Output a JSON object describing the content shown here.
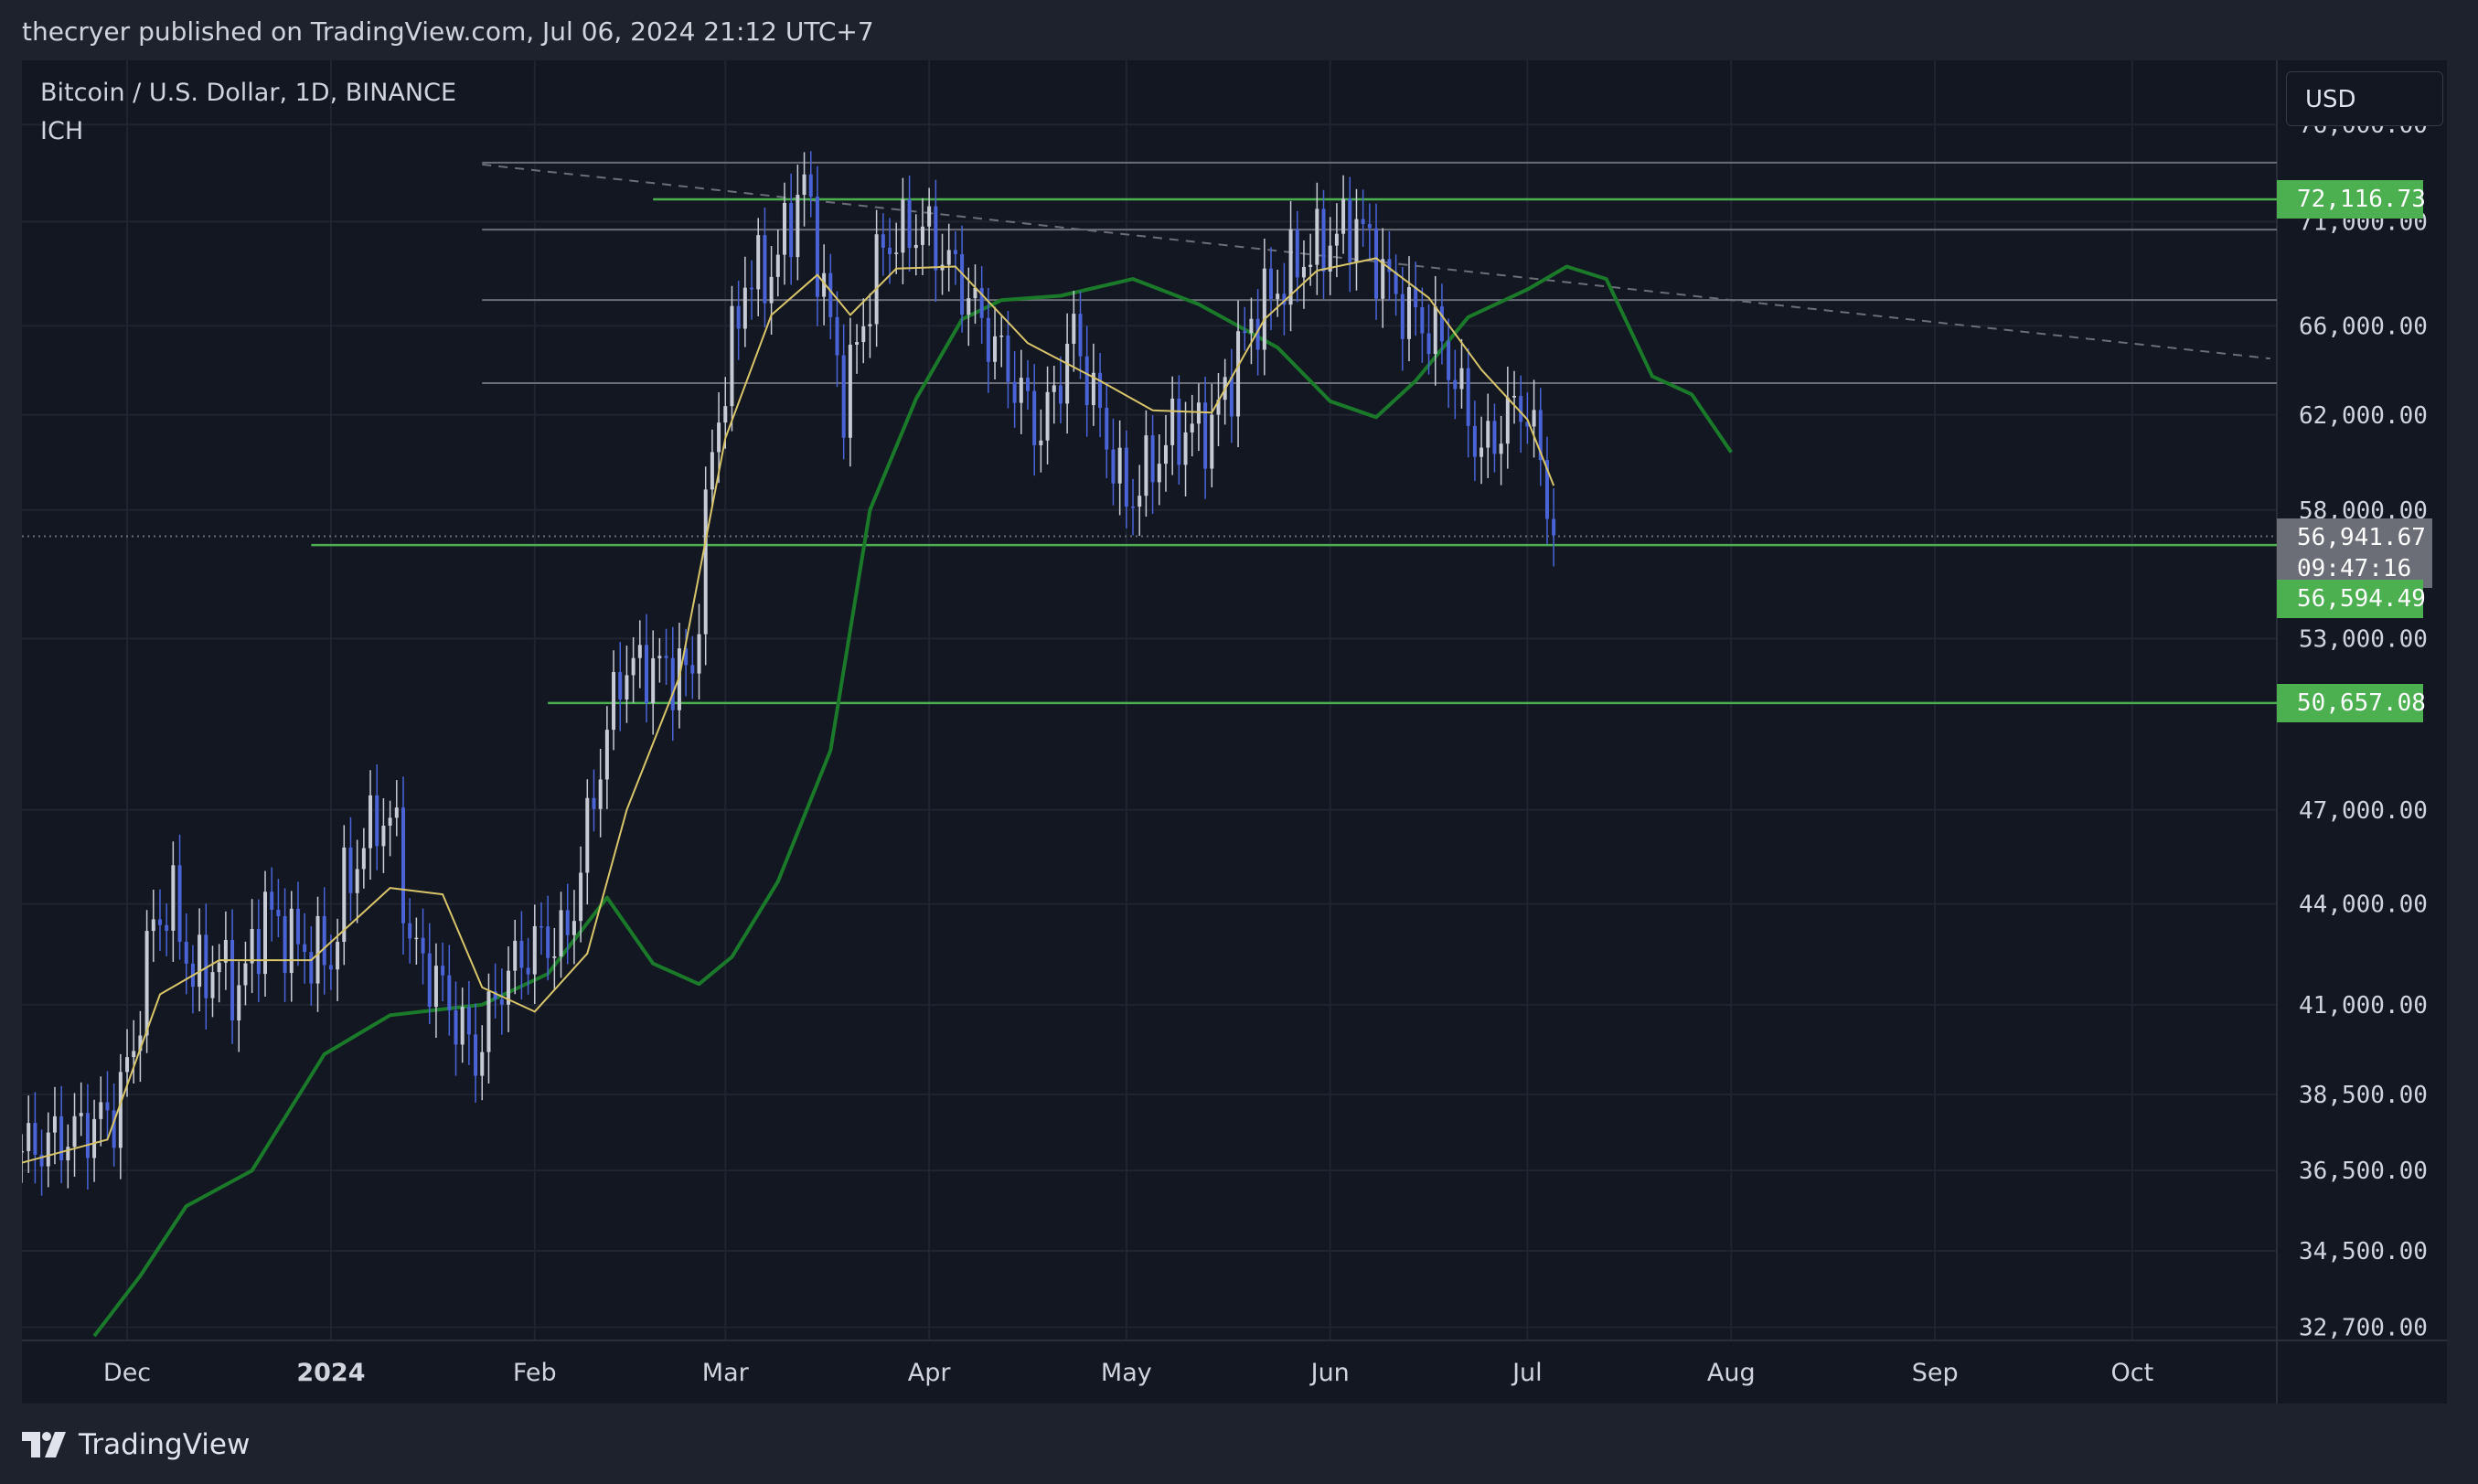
{
  "header": {
    "publish_text": "thecryer published on TradingView.com, Jul 06, 2024 21:12 UTC+7"
  },
  "symbol": {
    "title": "Bitcoin / U.S. Dollar, 1D, BINANCE",
    "indicator": "ICH"
  },
  "currency_button": "USD",
  "footer": {
    "brand": "TradingView",
    "logo_icon": "tradingview-logo-icon"
  },
  "colors": {
    "background": "#131722",
    "grid": "#1f2430",
    "candle": "#4a64d8",
    "conversion_line": "#d8c56a",
    "cloud_line": "#1a7a2a",
    "level_line": "#4caf50",
    "level_tag": "#4caf50",
    "current_tag": "#6b6e76"
  },
  "price_tags": {
    "level_top": "72,116.73",
    "current_price": "56,941.67",
    "countdown": "09:47:16",
    "level_mid": "56,594.49",
    "level_low": "50,657.08"
  },
  "chart_data": {
    "type": "candlestick",
    "title": "Bitcoin / U.S. Dollar, 1D, BINANCE",
    "price_scale": "log",
    "y_tick_labels": [
      "76,000.00",
      "71,000.00",
      "66,000.00",
      "62,000.00",
      "58,000.00",
      "53,000.00",
      "47,000.00",
      "44,000.00",
      "41,000.00",
      "38,500.00",
      "36,500.00",
      "34,500.00",
      "32,700.00"
    ],
    "y_ticks": [
      76000,
      71000,
      66000,
      62000,
      58000,
      53000,
      47000,
      44000,
      41000,
      38500,
      36500,
      34500,
      32700
    ],
    "x_tick_labels": [
      "Dec",
      "2024",
      "Feb",
      "Mar",
      "Apr",
      "May",
      "Jun",
      "Jul",
      "Aug",
      "Sep",
      "Oct"
    ],
    "x_ticks": [
      "2023-12-01",
      "2024-01-01",
      "2024-02-01",
      "2024-03-01",
      "2024-04-01",
      "2024-05-01",
      "2024-06-01",
      "2024-07-01",
      "2024-08-01",
      "2024-09-01",
      "2024-10-01"
    ],
    "x_range": [
      "2023-11-15",
      "2024-10-23"
    ],
    "y_range": [
      32400,
      79500
    ],
    "horizontal_levels": [
      72116.73,
      56594.49,
      50657.08
    ],
    "gray_levels": [
      74000,
      70600,
      67200,
      63400
    ],
    "current_price": 56941.67,
    "trendline": [
      {
        "date": "2024-01-24",
        "price": 73900
      },
      {
        "date": "2024-10-22",
        "price": 64500
      }
    ],
    "price_series": [
      {
        "date": "2023-11-15",
        "price": 37000
      },
      {
        "date": "2023-11-22",
        "price": 37400
      },
      {
        "date": "2023-11-29",
        "price": 38000
      },
      {
        "date": "2023-12-02",
        "price": 39800
      },
      {
        "date": "2023-12-05",
        "price": 43500
      },
      {
        "date": "2023-12-08",
        "price": 44000
      },
      {
        "date": "2023-12-11",
        "price": 41800
      },
      {
        "date": "2023-12-15",
        "price": 42200
      },
      {
        "date": "2023-12-18",
        "price": 41400
      },
      {
        "date": "2023-12-22",
        "price": 43800
      },
      {
        "date": "2023-12-27",
        "price": 42700
      },
      {
        "date": "2024-01-01",
        "price": 42300
      },
      {
        "date": "2024-01-03",
        "price": 44500
      },
      {
        "date": "2024-01-08",
        "price": 46800
      },
      {
        "date": "2024-01-11",
        "price": 46300
      },
      {
        "date": "2024-01-13",
        "price": 42800
      },
      {
        "date": "2024-01-18",
        "price": 41400
      },
      {
        "date": "2024-01-23",
        "price": 39500
      },
      {
        "date": "2024-01-27",
        "price": 41700
      },
      {
        "date": "2024-02-01",
        "price": 42800
      },
      {
        "date": "2024-02-06",
        "price": 43000
      },
      {
        "date": "2024-02-10",
        "price": 47500
      },
      {
        "date": "2024-02-14",
        "price": 51800
      },
      {
        "date": "2024-02-18",
        "price": 52000
      },
      {
        "date": "2024-02-25",
        "price": 51700
      },
      {
        "date": "2024-02-28",
        "price": 60500
      },
      {
        "date": "2024-03-04",
        "price": 68200
      },
      {
        "date": "2024-03-08",
        "price": 68500
      },
      {
        "date": "2024-03-13",
        "price": 73000
      },
      {
        "date": "2024-03-19",
        "price": 62700
      },
      {
        "date": "2024-03-25",
        "price": 69900
      },
      {
        "date": "2024-03-31",
        "price": 70700
      },
      {
        "date": "2024-04-05",
        "price": 68500
      },
      {
        "date": "2024-04-13",
        "price": 64000
      },
      {
        "date": "2024-04-18",
        "price": 61200
      },
      {
        "date": "2024-04-23",
        "price": 65700
      },
      {
        "date": "2024-05-01",
        "price": 58300
      },
      {
        "date": "2024-05-08",
        "price": 61200
      },
      {
        "date": "2024-05-14",
        "price": 61500
      },
      {
        "date": "2024-05-20",
        "price": 66200
      },
      {
        "date": "2024-05-27",
        "price": 69000
      },
      {
        "date": "2024-06-05",
        "price": 71000
      },
      {
        "date": "2024-06-11",
        "price": 67300
      },
      {
        "date": "2024-06-18",
        "price": 65200
      },
      {
        "date": "2024-06-24",
        "price": 60300
      },
      {
        "date": "2024-06-30",
        "price": 62700
      },
      {
        "date": "2024-07-03",
        "price": 60200
      },
      {
        "date": "2024-07-05",
        "price": 56900
      }
    ],
    "conversion_line": [
      {
        "date": "2023-11-15",
        "price": 36700
      },
      {
        "date": "2023-11-28",
        "price": 37300
      },
      {
        "date": "2023-12-06",
        "price": 41300
      },
      {
        "date": "2023-12-15",
        "price": 42300
      },
      {
        "date": "2023-12-29",
        "price": 42300
      },
      {
        "date": "2024-01-10",
        "price": 44500
      },
      {
        "date": "2024-01-18",
        "price": 44300
      },
      {
        "date": "2024-01-24",
        "price": 41500
      },
      {
        "date": "2024-02-01",
        "price": 40800
      },
      {
        "date": "2024-02-09",
        "price": 42500
      },
      {
        "date": "2024-02-15",
        "price": 47000
      },
      {
        "date": "2024-02-23",
        "price": 51600
      },
      {
        "date": "2024-03-01",
        "price": 61000
      },
      {
        "date": "2024-03-08",
        "price": 66500
      },
      {
        "date": "2024-03-15",
        "price": 68400
      },
      {
        "date": "2024-03-20",
        "price": 66500
      },
      {
        "date": "2024-03-27",
        "price": 68700
      },
      {
        "date": "2024-04-05",
        "price": 68800
      },
      {
        "date": "2024-04-16",
        "price": 65200
      },
      {
        "date": "2024-04-27",
        "price": 63500
      },
      {
        "date": "2024-05-05",
        "price": 62200
      },
      {
        "date": "2024-05-14",
        "price": 62100
      },
      {
        "date": "2024-05-22",
        "price": 66300
      },
      {
        "date": "2024-05-30",
        "price": 68600
      },
      {
        "date": "2024-06-08",
        "price": 69200
      },
      {
        "date": "2024-06-16",
        "price": 67300
      },
      {
        "date": "2024-06-24",
        "price": 64000
      },
      {
        "date": "2024-07-01",
        "price": 61800
      },
      {
        "date": "2024-07-05",
        "price": 59000
      }
    ],
    "cloud_line": [
      {
        "date": "2023-11-26",
        "price": 32500
      },
      {
        "date": "2023-12-03",
        "price": 33900
      },
      {
        "date": "2023-12-10",
        "price": 35600
      },
      {
        "date": "2023-12-20",
        "price": 36500
      },
      {
        "date": "2023-12-31",
        "price": 39600
      },
      {
        "date": "2024-01-10",
        "price": 40700
      },
      {
        "date": "2024-01-24",
        "price": 41000
      },
      {
        "date": "2024-02-03",
        "price": 41900
      },
      {
        "date": "2024-02-12",
        "price": 44200
      },
      {
        "date": "2024-02-19",
        "price": 42200
      },
      {
        "date": "2024-02-26",
        "price": 41600
      },
      {
        "date": "2024-03-02",
        "price": 42400
      },
      {
        "date": "2024-03-09",
        "price": 44700
      },
      {
        "date": "2024-03-17",
        "price": 49000
      },
      {
        "date": "2024-03-23",
        "price": 58000
      },
      {
        "date": "2024-03-30",
        "price": 62700
      },
      {
        "date": "2024-04-06",
        "price": 66300
      },
      {
        "date": "2024-04-12",
        "price": 67200
      },
      {
        "date": "2024-04-21",
        "price": 67400
      },
      {
        "date": "2024-05-02",
        "price": 68200
      },
      {
        "date": "2024-05-12",
        "price": 67000
      },
      {
        "date": "2024-05-24",
        "price": 65000
      },
      {
        "date": "2024-06-01",
        "price": 62600
      },
      {
        "date": "2024-06-08",
        "price": 61900
      },
      {
        "date": "2024-06-14",
        "price": 63500
      },
      {
        "date": "2024-06-22",
        "price": 66400
      },
      {
        "date": "2024-07-01",
        "price": 67700
      },
      {
        "date": "2024-07-07",
        "price": 68800
      },
      {
        "date": "2024-07-13",
        "price": 68200
      },
      {
        "date": "2024-07-20",
        "price": 63700
      },
      {
        "date": "2024-07-26",
        "price": 62900
      },
      {
        "date": "2024-08-01",
        "price": 60400
      }
    ]
  }
}
